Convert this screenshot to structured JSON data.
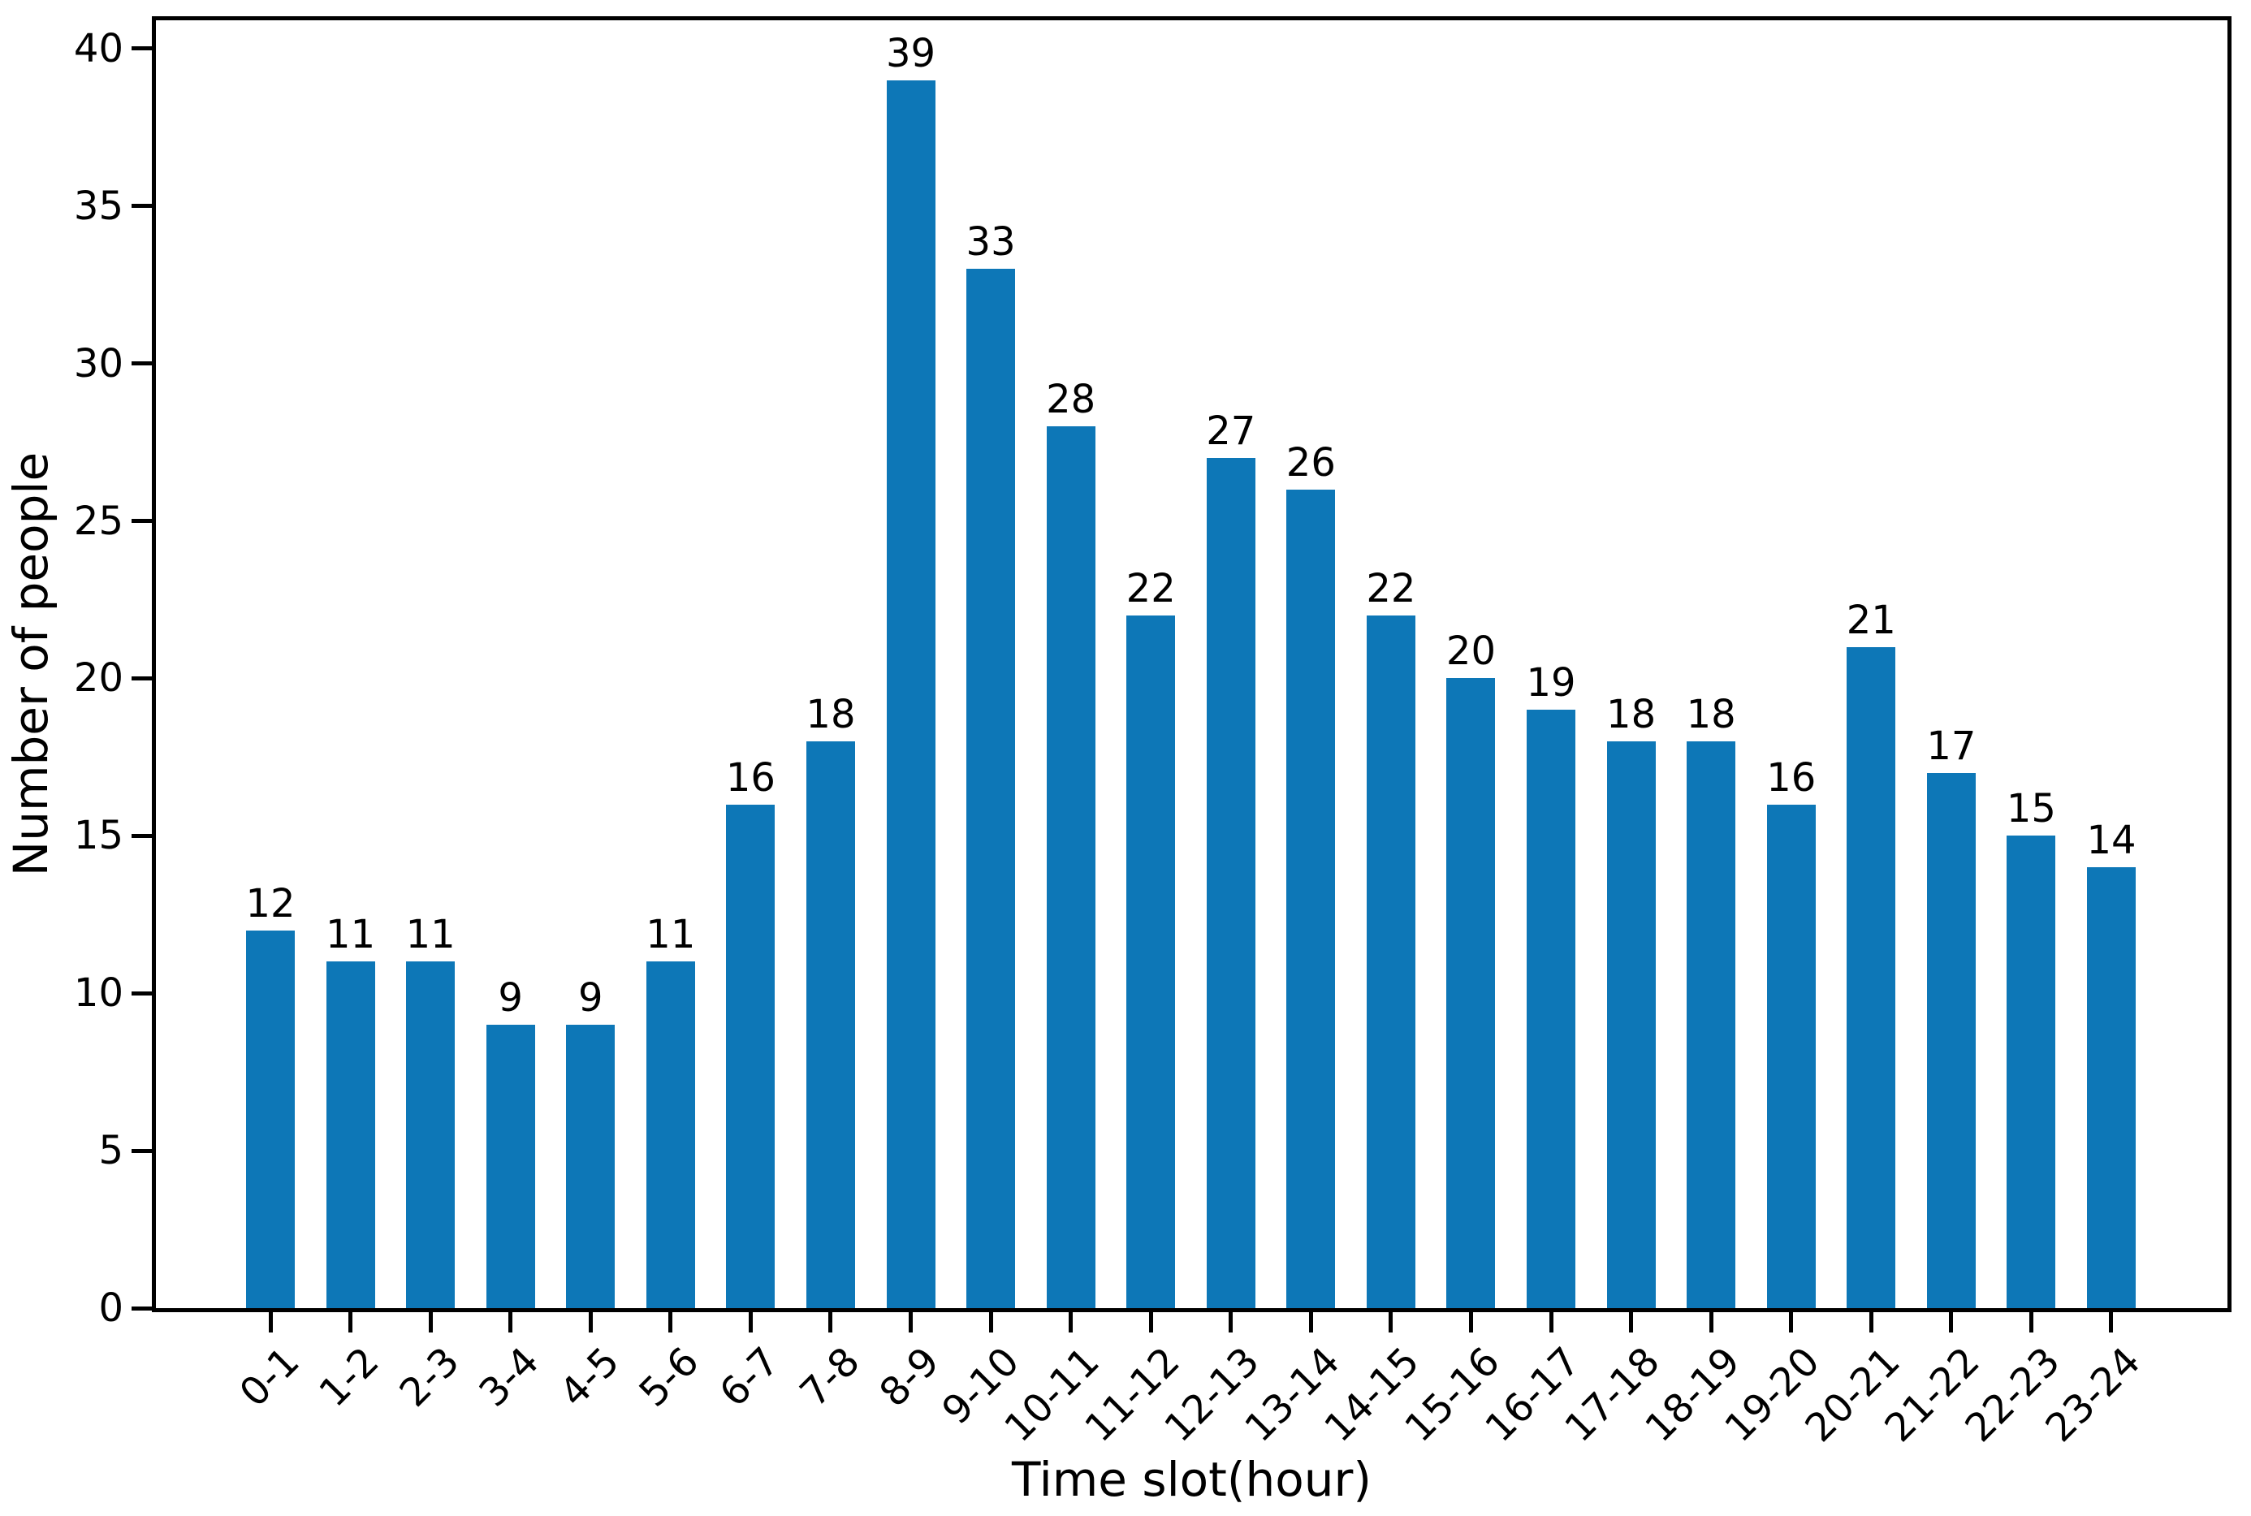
{
  "chart_data": {
    "type": "bar",
    "title": "",
    "xlabel": "Time slot(hour)",
    "ylabel": "Number of people",
    "categories": [
      "0-1",
      "1-2",
      "2-3",
      "3-4",
      "4-5",
      "5-6",
      "6-7",
      "7-8",
      "8-9",
      "9-10",
      "10-11",
      "11-12",
      "12-13",
      "13-14",
      "14-15",
      "15-16",
      "16-17",
      "17-18",
      "18-19",
      "19-20",
      "20-21",
      "21-22",
      "22-23",
      "23-24"
    ],
    "values": [
      12,
      11,
      11,
      9,
      9,
      11,
      16,
      18,
      39,
      33,
      28,
      22,
      27,
      26,
      22,
      20,
      19,
      18,
      18,
      16,
      21,
      17,
      15,
      14
    ],
    "bar_labels_shown": true,
    "ylim": [
      0,
      40.9
    ],
    "yticks": [
      0,
      5,
      10,
      15,
      20,
      25,
      30,
      35,
      40
    ],
    "xtick_rotation_deg": 45,
    "grid": false,
    "legend": null,
    "bar_color": "#0d77b7",
    "axis_color": "#000000",
    "text_color": "#000000",
    "background_color": "#ffffff"
  }
}
